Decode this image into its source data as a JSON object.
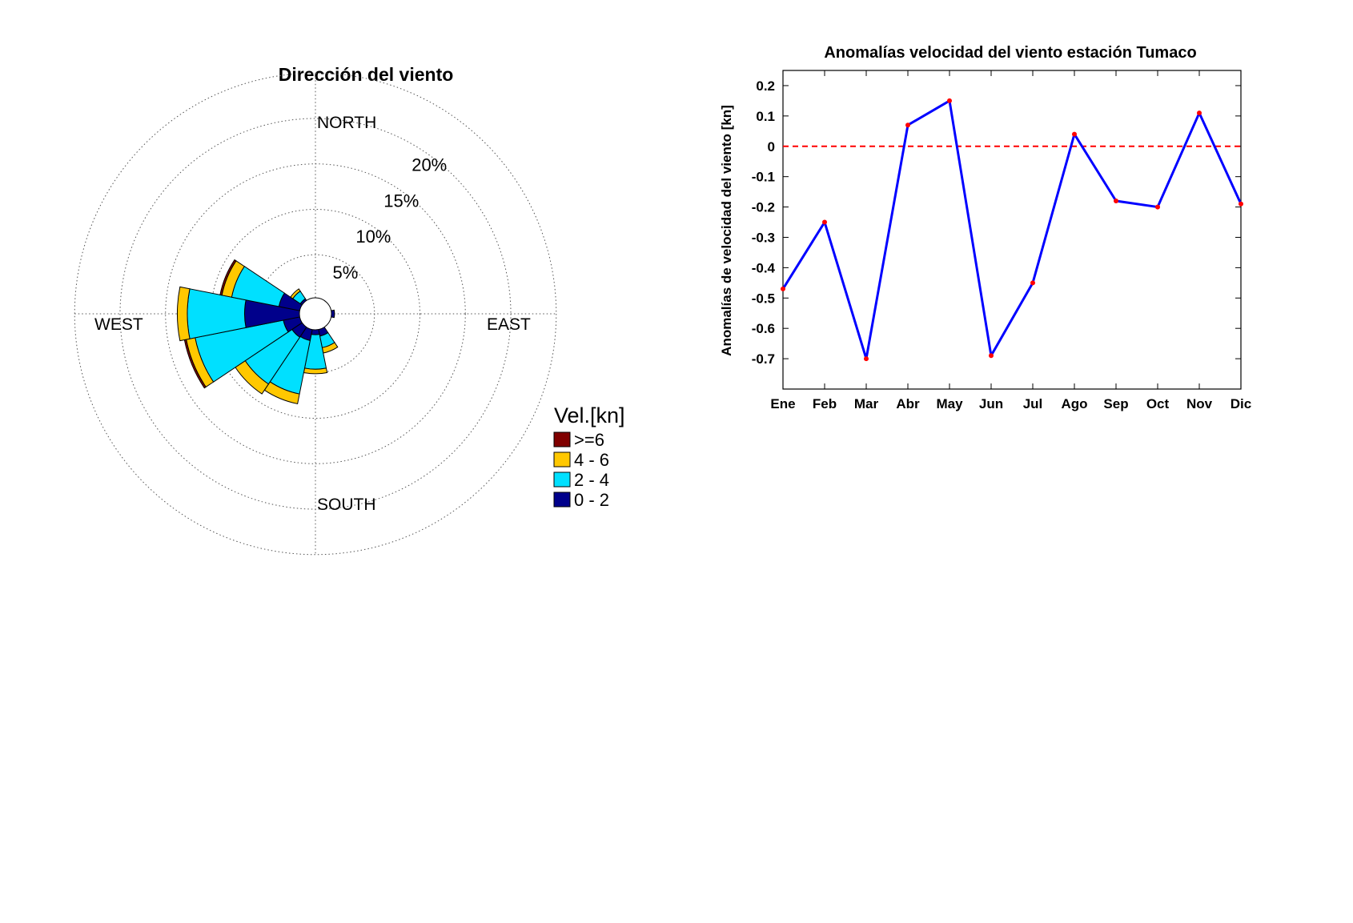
{
  "chart_data": [
    {
      "type": "polar-stacked-bar",
      "title": "Dirección del viento",
      "direction_labels": {
        "north": "NORTH",
        "south": "SOUTH",
        "east": "EAST",
        "west": "WEST"
      },
      "ring_labels": [
        "5%",
        "10%",
        "15%",
        "20%"
      ],
      "ring_values": [
        5,
        10,
        15,
        20,
        25
      ],
      "center_offset": 1.5,
      "sector_width_deg": 22.5,
      "legend_title": "Vel.[kn]",
      "legend": [
        {
          "label": ">=6",
          "color": "#800000"
        },
        {
          "label": "4 - 6",
          "color": "#FFC800"
        },
        {
          "label": "2 - 4",
          "color": "#00E0FF"
        },
        {
          "label": "0 - 2",
          "color": "#00008B"
        }
      ],
      "bins": [
        {
          "name": "0 - 2",
          "color": "#00008B"
        },
        {
          "name": "2 - 4",
          "color": "#00E0FF"
        },
        {
          "name": "4 - 6",
          "color": "#FFC800"
        },
        {
          "name": ">=6",
          "color": "#800000"
        }
      ],
      "sectors": [
        {
          "dir_deg": 90,
          "values": [
            0.6,
            0,
            0,
            0
          ]
        },
        {
          "dir_deg": 157.5,
          "values": [
            1.0,
            1.3,
            0.6,
            0
          ]
        },
        {
          "dir_deg": 180,
          "values": [
            0.8,
            3.8,
            0.5,
            0
          ]
        },
        {
          "dir_deg": 202.5,
          "values": [
            1.5,
            6.0,
            1.1,
            0
          ]
        },
        {
          "dir_deg": 225,
          "values": [
            1.6,
            6.2,
            1.3,
            0
          ]
        },
        {
          "dir_deg": 247.5,
          "values": [
            2.1,
            9.9,
            1.0,
            0.2
          ]
        },
        {
          "dir_deg": 270,
          "values": [
            6.3,
            6.3,
            1.1,
            0
          ]
        },
        {
          "dir_deg": 292.5,
          "values": [
            2.6,
            5.3,
            1.1,
            0.2
          ]
        },
        {
          "dir_deg": 315,
          "values": [
            0.5,
            1.0,
            0.3,
            0
          ]
        }
      ]
    },
    {
      "type": "line",
      "title": "Anomalías velocidad del viento estación Tumaco",
      "ylabel": "Anomalías de velocidad del viento [kn]",
      "xlabel": "",
      "categories": [
        "Ene",
        "Feb",
        "Mar",
        "Abr",
        "May",
        "Jun",
        "Jul",
        "Ago",
        "Sep",
        "Oct",
        "Nov",
        "Dic"
      ],
      "values": [
        -0.47,
        -0.25,
        -0.7,
        0.07,
        0.15,
        -0.69,
        -0.45,
        0.04,
        -0.18,
        -0.2,
        0.11,
        -0.19
      ],
      "yticks": [
        "0.2",
        "0.1",
        "0",
        "-0.1",
        "-0.2",
        "-0.3",
        "-0.4",
        "-0.5",
        "-0.6",
        "-0.7"
      ],
      "ytick_values": [
        0.2,
        0.1,
        0,
        -0.1,
        -0.2,
        -0.3,
        -0.4,
        -0.5,
        -0.6,
        -0.7
      ],
      "ylim": [
        -0.8,
        0.25
      ],
      "reference_line": 0,
      "colors": {
        "line": "#0000FF",
        "markers": "#FF0000",
        "reference": "#FF0000"
      }
    }
  ]
}
